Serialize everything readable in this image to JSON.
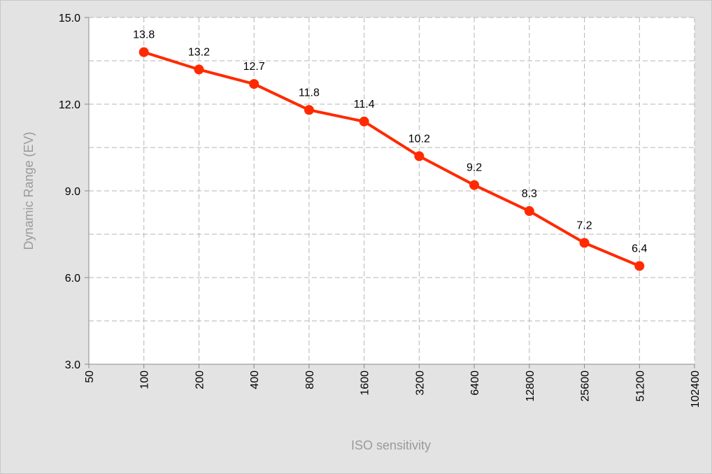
{
  "chart_data": {
    "type": "line",
    "xlabel": "ISO sensitivity",
    "ylabel": "Dynamic Range (EV)",
    "x_scale": "log2",
    "x_ticks": [
      "50",
      "100",
      "200",
      "400",
      "800",
      "1600",
      "3200",
      "6400",
      "12800",
      "25600",
      "51200",
      "102400"
    ],
    "y_ticks": [
      "3.0",
      "6.0",
      "9.0",
      "12.0",
      "15.0"
    ],
    "ylim": [
      3.0,
      15.0
    ],
    "xlim": [
      50,
      102400
    ],
    "grid": true,
    "series": [
      {
        "color": "#ff2a00",
        "x": [
          100,
          200,
          400,
          800,
          1600,
          3200,
          6400,
          12800,
          25600,
          51200
        ],
        "y": [
          13.8,
          13.2,
          12.7,
          11.8,
          11.4,
          10.2,
          9.2,
          8.3,
          7.2,
          6.4
        ],
        "labels": [
          "13.8",
          "13.2",
          "12.7",
          "11.8",
          "11.4",
          "10.2",
          "9.2",
          "8.3",
          "7.2",
          "6.4"
        ]
      }
    ]
  }
}
